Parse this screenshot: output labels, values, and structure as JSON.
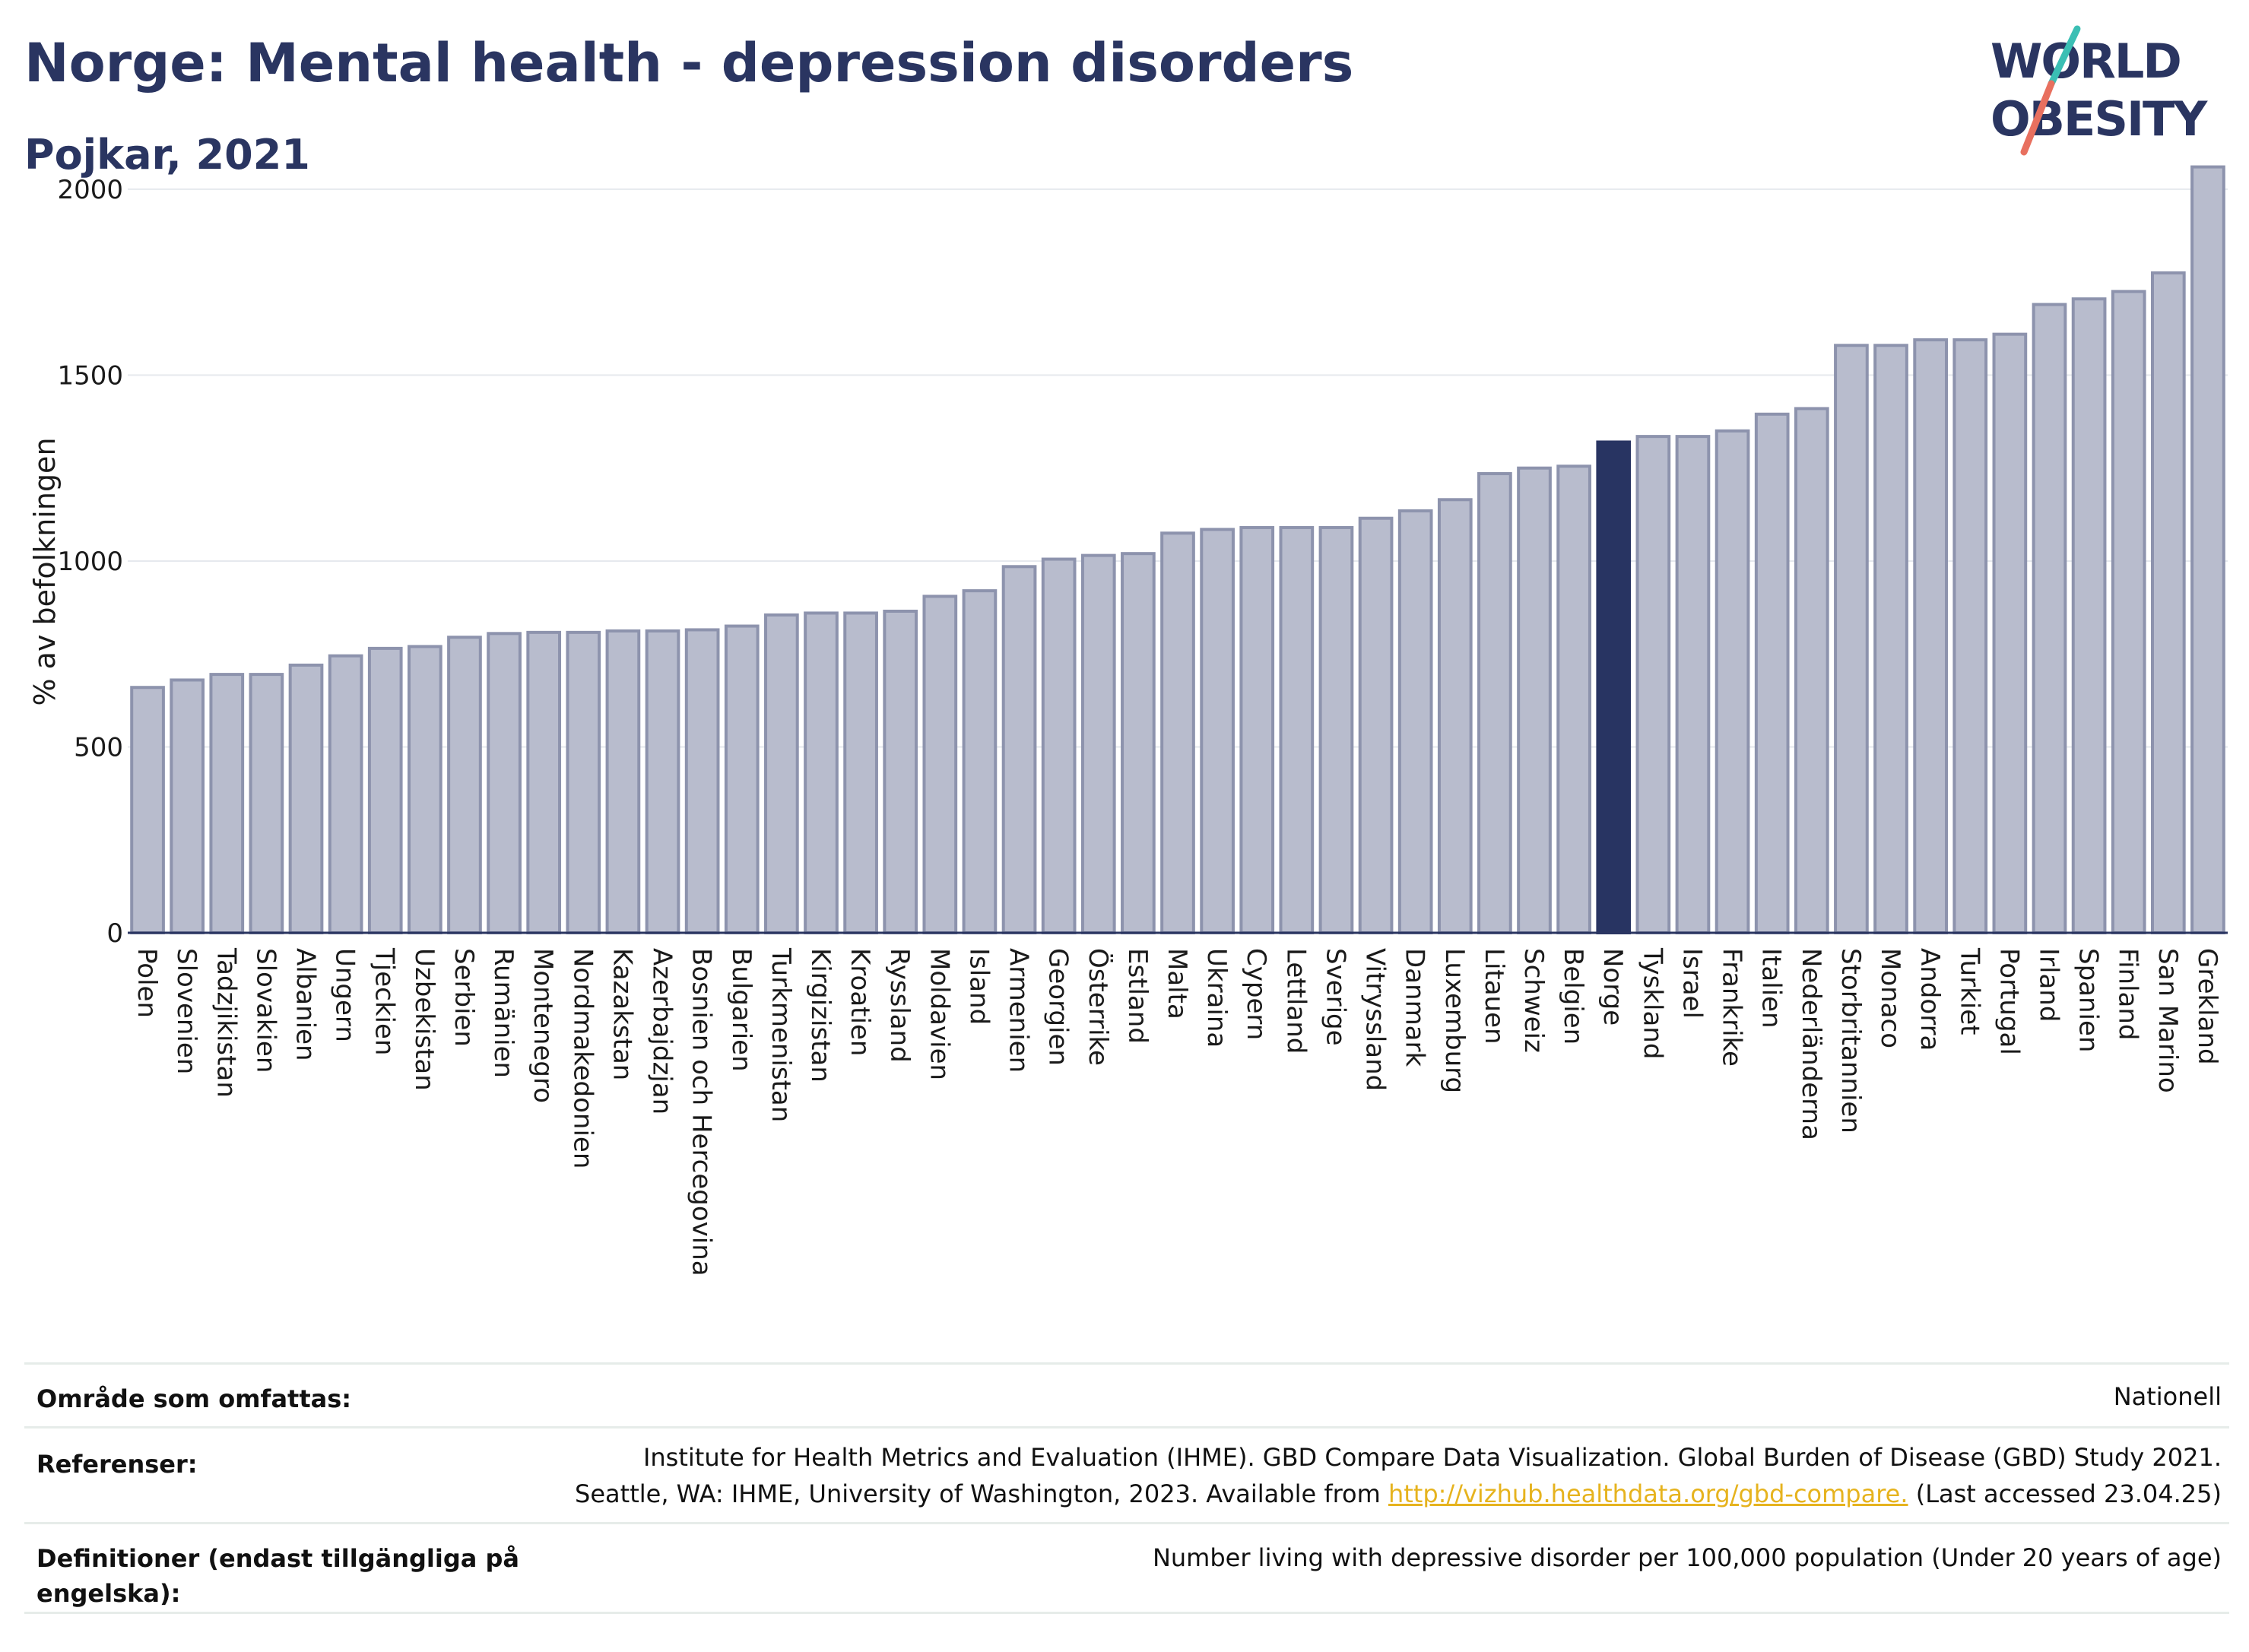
{
  "header": {
    "title": "Norge: Mental health - depression disorders",
    "subtitle": "Pojkar, 2021"
  },
  "logo": {
    "line1": "WORLD",
    "line2": "OBESITY",
    "text_color": "#2a3561",
    "slash_colors": [
      "#3bbfb4",
      "#e8705f"
    ]
  },
  "colors": {
    "bar": "#b8bccd",
    "bar_edge": "#8d93ad",
    "highlight": "#283462",
    "grid": "#e6e9ee",
    "axis": "#2a3561"
  },
  "chart_data": {
    "type": "bar",
    "title": "Norge: Mental health - depression disorders",
    "subtitle": "Pojkar, 2021",
    "ylabel": "% av befolkningen",
    "xlabel": "",
    "ylim": [
      0,
      2100
    ],
    "yticks": [
      0,
      500,
      1000,
      1500,
      2000
    ],
    "grid": true,
    "highlight": "Norge",
    "categories": [
      "Polen",
      "Slovenien",
      "Tadzjikistan",
      "Slovakien",
      "Albanien",
      "Ungern",
      "Tjeckien",
      "Uzbekistan",
      "Serbien",
      "Rumänien",
      "Montenegro",
      "Nordmakedonien",
      "Kazakstan",
      "Azerbajdzjan",
      "Bosnien och Hercegovina",
      "Bulgarien",
      "Turkmenistan",
      "Kirgizistan",
      "Kroatien",
      "Ryssland",
      "Moldavien",
      "Island",
      "Armenien",
      "Georgien",
      "Österrike",
      "Estland",
      "Malta",
      "Ukraina",
      "Cypern",
      "Lettland",
      "Sverige",
      "Vitryssland",
      "Danmark",
      "Luxemburg",
      "Litauen",
      "Schweiz",
      "Belgien",
      "Norge",
      "Tyskland",
      "Israel",
      "Frankrike",
      "Italien",
      "Nederländerna",
      "Storbritannien",
      "Monaco",
      "Andorra",
      "Turkiet",
      "Portugal",
      "Irland",
      "Spanien",
      "Finland",
      "San Marino",
      "Grekland"
    ],
    "values": [
      660,
      680,
      695,
      695,
      720,
      745,
      765,
      770,
      795,
      805,
      808,
      808,
      812,
      812,
      815,
      825,
      855,
      860,
      860,
      865,
      905,
      920,
      985,
      1005,
      1015,
      1020,
      1075,
      1085,
      1090,
      1090,
      1090,
      1115,
      1135,
      1165,
      1235,
      1250,
      1255,
      1320,
      1335,
      1335,
      1350,
      1395,
      1410,
      1580,
      1580,
      1595,
      1595,
      1610,
      1690,
      1705,
      1725,
      1775,
      2060
    ]
  },
  "info": {
    "area_label": "Område som omfattas:",
    "area_value": "Nationell",
    "ref_label": "Referenser:",
    "ref_line1": "Institute for Health Metrics and Evaluation (IHME). GBD Compare Data Visualization. Global Burden of Disease (GBD) Study 2021.",
    "ref_line2_pre": "Seattle, WA: IHME, University of Washington, 2023. Available from ",
    "ref_link": "http://vizhub.healthdata.org/gbd-compare.",
    "ref_line2_post": " (Last accessed 23.04.25)",
    "def_label": "Definitioner (endast tillgängliga på engelska):",
    "def_value": "Number living with depressive disorder per 100,000 population (Under 20 years of age)"
  }
}
